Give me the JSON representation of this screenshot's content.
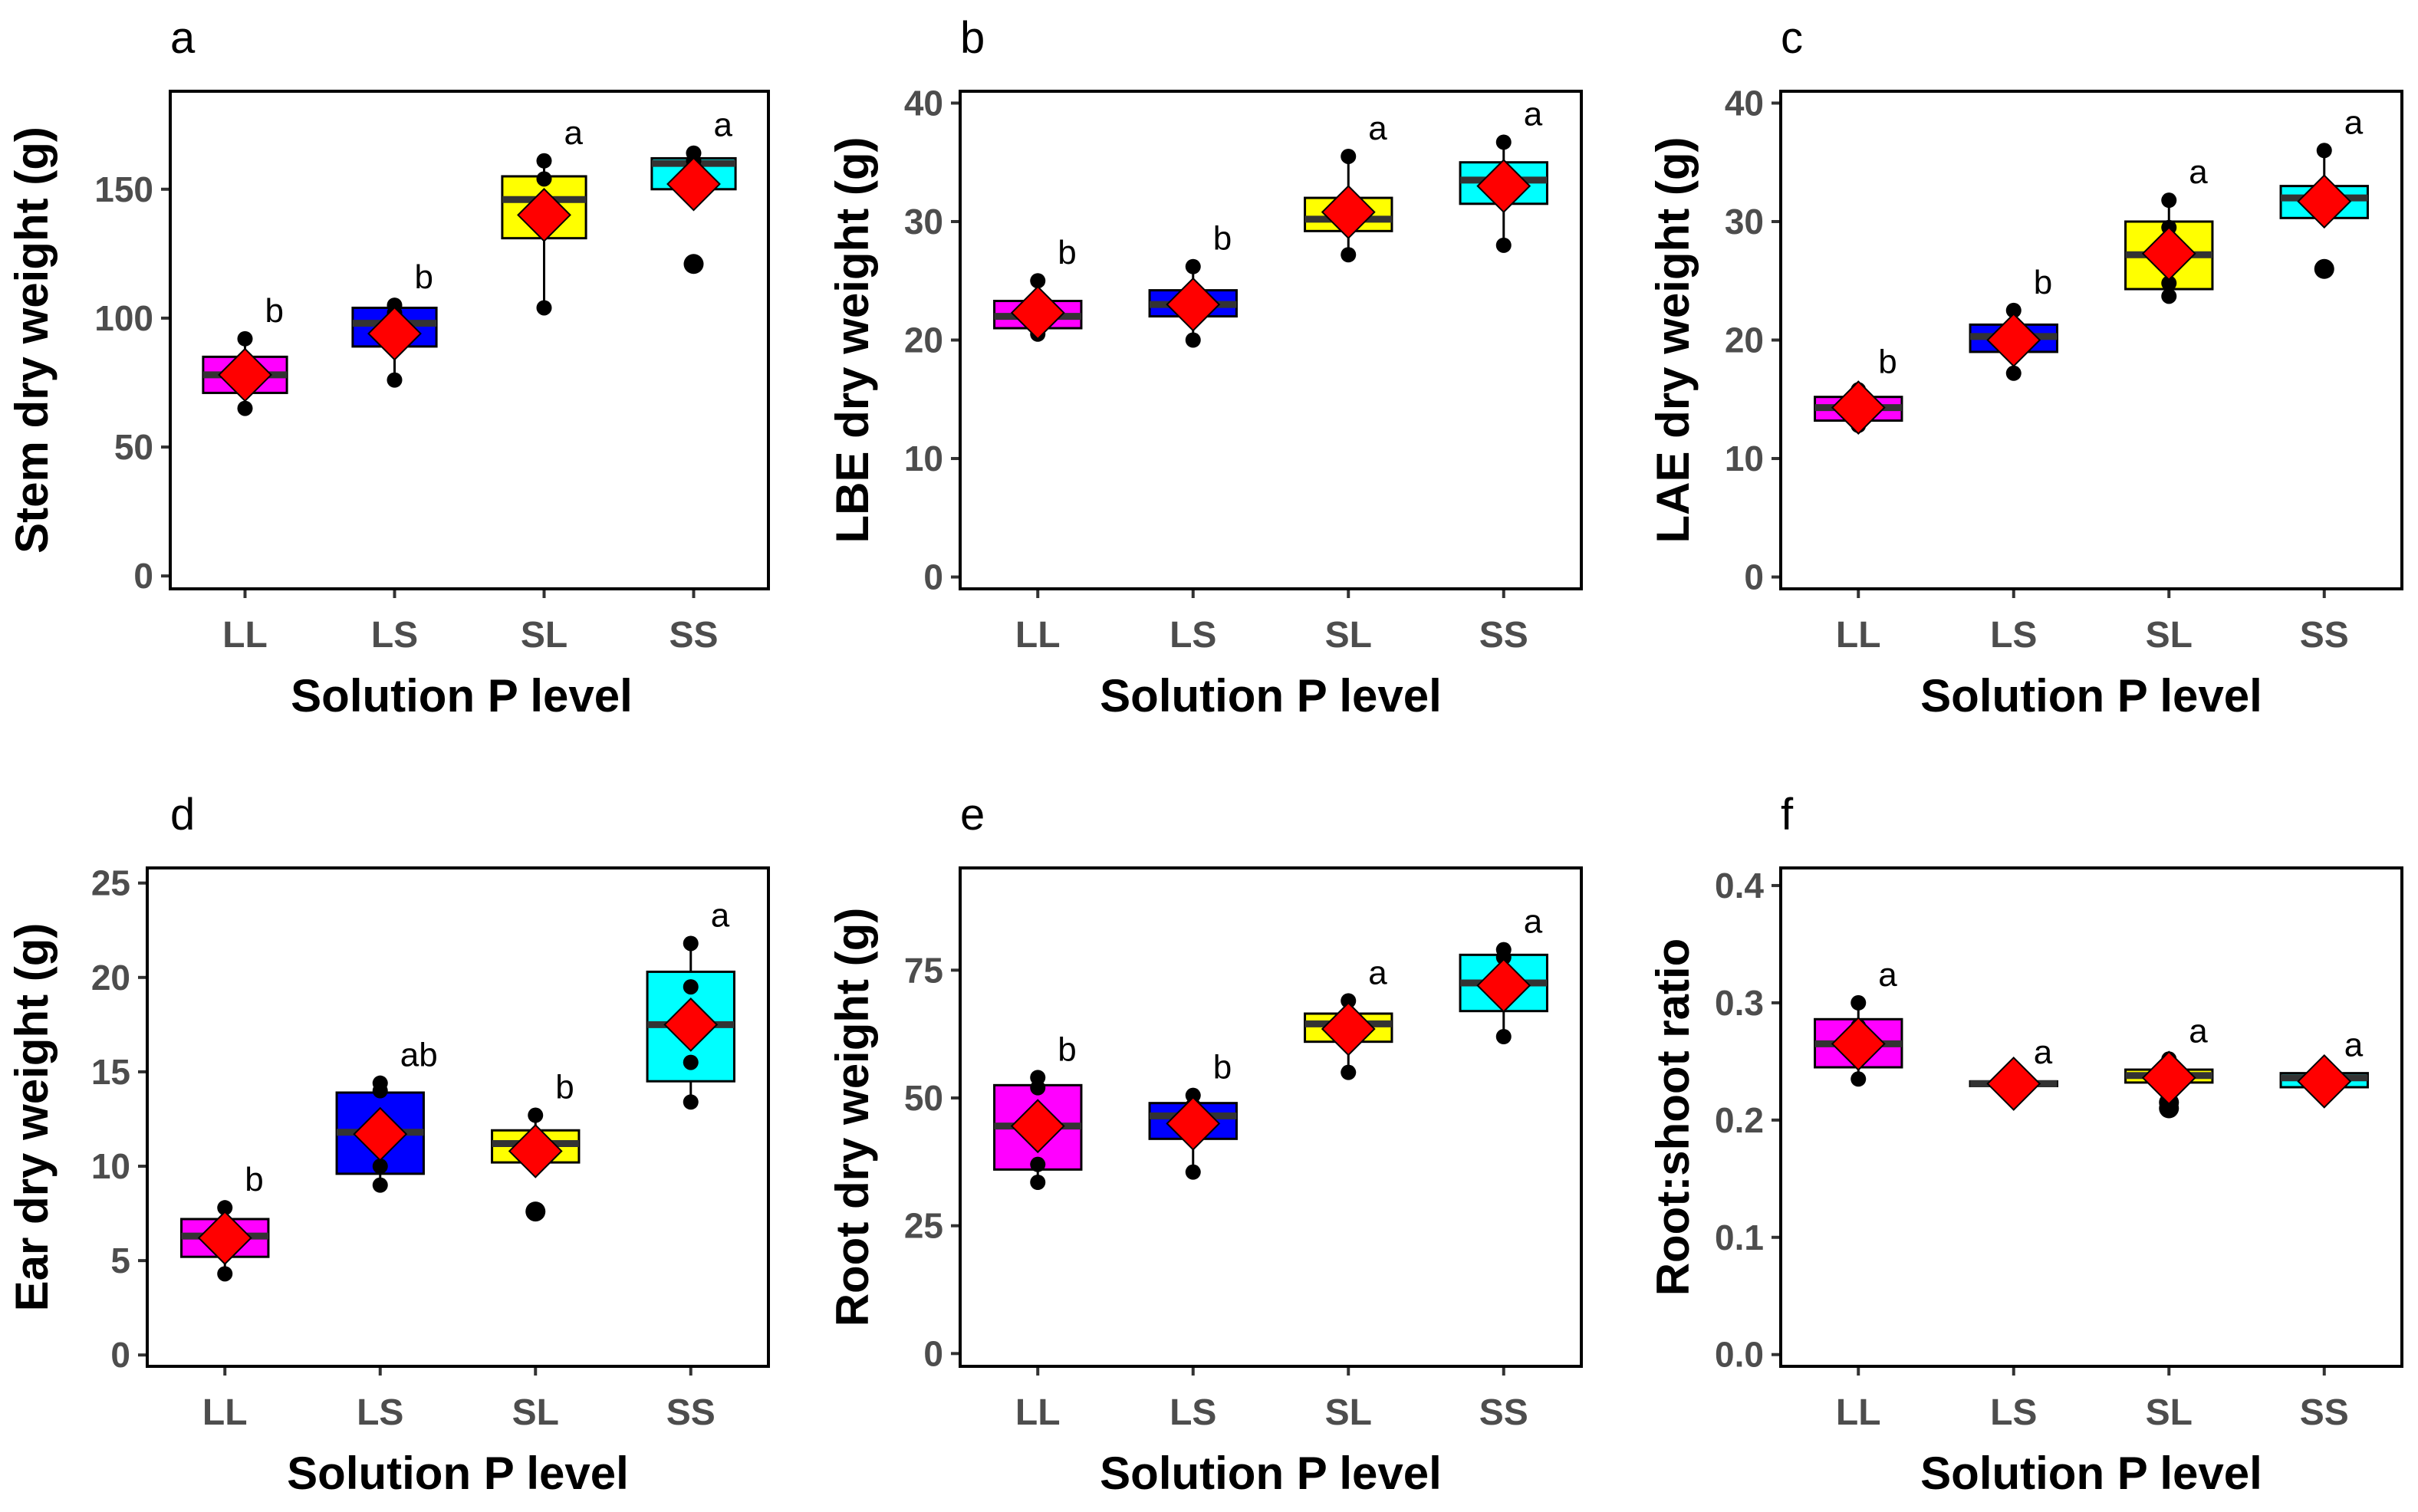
{
  "figure": {
    "xlabel_common": "Solution P level"
  },
  "chart_data": [
    {
      "type": "box",
      "panel": "a",
      "xlabel": "Solution P level",
      "ylabel": "Stem dry weight (g)",
      "categories": [
        "LL",
        "LS",
        "SL",
        "SS"
      ],
      "colors": [
        "#ff00ff",
        "#0000ff",
        "#ffff00",
        "#00ffff"
      ],
      "ylim": [
        -5,
        188
      ],
      "yticks": [
        0,
        50,
        100,
        150
      ],
      "boxes": [
        {
          "q1": 71,
          "median": 78,
          "q3": 85,
          "whisker_low": 65,
          "whisker_high": 92,
          "mean": 78,
          "points": [
            65,
            72,
            80,
            92
          ],
          "outliers": [],
          "sig": "b"
        },
        {
          "q1": 89,
          "median": 98,
          "q3": 104,
          "whisker_low": 76,
          "whisker_high": 105,
          "mean": 94,
          "points": [
            76,
            93,
            102,
            105
          ],
          "outliers": [],
          "sig": "b"
        },
        {
          "q1": 131,
          "median": 146,
          "q3": 155,
          "whisker_low": 104,
          "whisker_high": 161,
          "mean": 140,
          "points": [
            104,
            140,
            154,
            161
          ],
          "outliers": [],
          "sig": "a"
        },
        {
          "q1": 150,
          "median": 160,
          "q3": 162,
          "whisker_low": 150,
          "whisker_high": 164,
          "mean": 152,
          "points": [
            121,
            158,
            161,
            164
          ],
          "outliers": [
            121
          ],
          "sig": "a"
        }
      ]
    },
    {
      "type": "box",
      "panel": "b",
      "xlabel": "Solution P level",
      "ylabel": "LBE dry weight (g)",
      "categories": [
        "LL",
        "LS",
        "SL",
        "SS"
      ],
      "colors": [
        "#ff00ff",
        "#0000ff",
        "#ffff00",
        "#00ffff"
      ],
      "ylim": [
        -1,
        41
      ],
      "yticks": [
        0,
        10,
        20,
        30,
        40
      ],
      "boxes": [
        {
          "q1": 21,
          "median": 22,
          "q3": 23.3,
          "whisker_low": 20.5,
          "whisker_high": 25,
          "mean": 22.3,
          "points": [
            20.5,
            21.5,
            22.5,
            25
          ],
          "outliers": [],
          "sig": "b"
        },
        {
          "q1": 22,
          "median": 23,
          "q3": 24.2,
          "whisker_low": 20,
          "whisker_high": 26.2,
          "mean": 23,
          "points": [
            20,
            22.5,
            23.5,
            26.2
          ],
          "outliers": [],
          "sig": "b"
        },
        {
          "q1": 29.2,
          "median": 30.2,
          "q3": 32,
          "whisker_low": 27.2,
          "whisker_high": 35.5,
          "mean": 30.8,
          "points": [
            27.2,
            30,
            31,
            35.5
          ],
          "outliers": [],
          "sig": "a"
        },
        {
          "q1": 31.5,
          "median": 33.5,
          "q3": 35,
          "whisker_low": 28,
          "whisker_high": 36.7,
          "mean": 33,
          "points": [
            28,
            33,
            34,
            36.7
          ],
          "outliers": [],
          "sig": "a"
        }
      ]
    },
    {
      "type": "box",
      "panel": "c",
      "xlabel": "Solution P level",
      "ylabel": "LAE dry weight (g)",
      "categories": [
        "LL",
        "LS",
        "SL",
        "SS"
      ],
      "colors": [
        "#ff00ff",
        "#0000ff",
        "#ffff00",
        "#00ffff"
      ],
      "ylim": [
        -1,
        41
      ],
      "yticks": [
        0,
        10,
        20,
        30,
        40
      ],
      "boxes": [
        {
          "q1": 13.2,
          "median": 14.3,
          "q3": 15.2,
          "whisker_low": 12.8,
          "whisker_high": 15.8,
          "mean": 14.3,
          "points": [
            12.8,
            14,
            15,
            15.8
          ],
          "outliers": [],
          "sig": "b"
        },
        {
          "q1": 19,
          "median": 20.3,
          "q3": 21.3,
          "whisker_low": 17.2,
          "whisker_high": 22.5,
          "mean": 20,
          "points": [
            17.2,
            20,
            21,
            22.5
          ],
          "outliers": [],
          "sig": "b"
        },
        {
          "q1": 24.3,
          "median": 27.2,
          "q3": 30,
          "whisker_low": 23.7,
          "whisker_high": 31.8,
          "mean": 27.3,
          "points": [
            23.7,
            24.8,
            29.5,
            31.8
          ],
          "outliers": [],
          "sig": "a"
        },
        {
          "q1": 30.3,
          "median": 32,
          "q3": 33,
          "whisker_low": 30.3,
          "whisker_high": 36,
          "mean": 31.7,
          "points": [
            26,
            31.5,
            32.5,
            36
          ],
          "outliers": [
            26
          ],
          "sig": "a"
        }
      ]
    },
    {
      "type": "box",
      "panel": "d",
      "xlabel": "Solution P level",
      "ylabel": "Ear dry weight (g)",
      "categories": [
        "LL",
        "LS",
        "SL",
        "SS"
      ],
      "colors": [
        "#ff00ff",
        "#0000ff",
        "#ffff00",
        "#00ffff"
      ],
      "ylim": [
        -0.6,
        25.8
      ],
      "yticks": [
        0,
        5,
        10,
        15,
        20,
        25
      ],
      "boxes": [
        {
          "q1": 5.2,
          "median": 6.3,
          "q3": 7.2,
          "whisker_low": 4.3,
          "whisker_high": 7.8,
          "mean": 6.2,
          "points": [
            4.3,
            6,
            6.5,
            7.8
          ],
          "outliers": [],
          "sig": "b"
        },
        {
          "q1": 9.6,
          "median": 11.8,
          "q3": 13.9,
          "whisker_low": 9,
          "whisker_high": 14.4,
          "mean": 11.7,
          "points": [
            9,
            10,
            14,
            14.4
          ],
          "outliers": [],
          "sig": "ab"
        },
        {
          "q1": 10.2,
          "median": 11.2,
          "q3": 11.9,
          "whisker_low": 10.2,
          "whisker_high": 12.7,
          "mean": 10.8,
          "points": [
            7.6,
            10.8,
            11.5,
            12.7
          ],
          "outliers": [
            7.6
          ],
          "sig": "b"
        },
        {
          "q1": 14.5,
          "median": 17.5,
          "q3": 20.3,
          "whisker_low": 13.4,
          "whisker_high": 21.8,
          "mean": 17.5,
          "points": [
            13.4,
            15.5,
            19.5,
            21.8
          ],
          "outliers": [],
          "sig": "a"
        }
      ]
    },
    {
      "type": "box",
      "panel": "e",
      "xlabel": "Solution P level",
      "ylabel": "Root dry weight (g)",
      "categories": [
        "LL",
        "LS",
        "SL",
        "SS"
      ],
      "colors": [
        "#ff00ff",
        "#0000ff",
        "#ffff00",
        "#00ffff"
      ],
      "ylim": [
        -2.5,
        95
      ],
      "yticks": [
        0,
        25,
        50,
        75
      ],
      "boxes": [
        {
          "q1": 36,
          "median": 44.5,
          "q3": 52.5,
          "whisker_low": 33.5,
          "whisker_high": 54,
          "mean": 44.5,
          "points": [
            33.5,
            37,
            52,
            54
          ],
          "outliers": [],
          "sig": "b"
        },
        {
          "q1": 42,
          "median": 46.5,
          "q3": 49,
          "whisker_low": 35.5,
          "whisker_high": 50.5,
          "mean": 45,
          "points": [
            35.5,
            44,
            48.5,
            50.5
          ],
          "outliers": [],
          "sig": "b"
        },
        {
          "q1": 61,
          "median": 64.5,
          "q3": 66.5,
          "whisker_low": 55,
          "whisker_high": 69,
          "mean": 63.5,
          "points": [
            55,
            62,
            66,
            69
          ],
          "outliers": [],
          "sig": "a"
        },
        {
          "q1": 67,
          "median": 72.5,
          "q3": 78,
          "whisker_low": 62,
          "whisker_high": 79,
          "mean": 72,
          "points": [
            62,
            70,
            77.5,
            79
          ],
          "outliers": [],
          "sig": "a"
        }
      ]
    },
    {
      "type": "box",
      "panel": "f",
      "xlabel": "Solution P level",
      "ylabel": "Root:shoot ratio",
      "categories": [
        "LL",
        "LS",
        "SL",
        "SS"
      ],
      "colors": [
        "#ff00ff",
        "#0000ff",
        "#ffff00",
        "#00ffff"
      ],
      "ylim": [
        -0.01,
        0.415
      ],
      "yticks": [
        0.0,
        0.1,
        0.2,
        0.3,
        0.4
      ],
      "ytick_labels": [
        "0.0",
        "0.1",
        "0.2",
        "0.3",
        "0.4"
      ],
      "boxes": [
        {
          "q1": 0.245,
          "median": 0.265,
          "q3": 0.286,
          "whisker_low": 0.235,
          "whisker_high": 0.3,
          "mean": 0.265,
          "points": [
            0.235,
            0.255,
            0.28,
            0.3
          ],
          "outliers": [],
          "sig": "a"
        },
        {
          "q1": 0.229,
          "median": 0.231,
          "q3": 0.233,
          "whisker_low": 0.228,
          "whisker_high": 0.234,
          "mean": 0.231,
          "points": [
            0.228,
            0.231,
            0.233,
            0.234
          ],
          "outliers": [],
          "sig": "a"
        },
        {
          "q1": 0.232,
          "median": 0.238,
          "q3": 0.243,
          "whisker_low": 0.232,
          "whisker_high": 0.252,
          "mean": 0.236,
          "points": [
            0.21,
            0.215,
            0.24,
            0.252
          ],
          "outliers": [
            0.21,
            0.215
          ],
          "sig": "a"
        },
        {
          "q1": 0.228,
          "median": 0.236,
          "q3": 0.24,
          "whisker_low": 0.228,
          "whisker_high": 0.24,
          "mean": 0.233,
          "points": [
            0.228,
            0.233,
            0.237,
            0.24
          ],
          "outliers": [],
          "sig": "a"
        }
      ]
    }
  ]
}
